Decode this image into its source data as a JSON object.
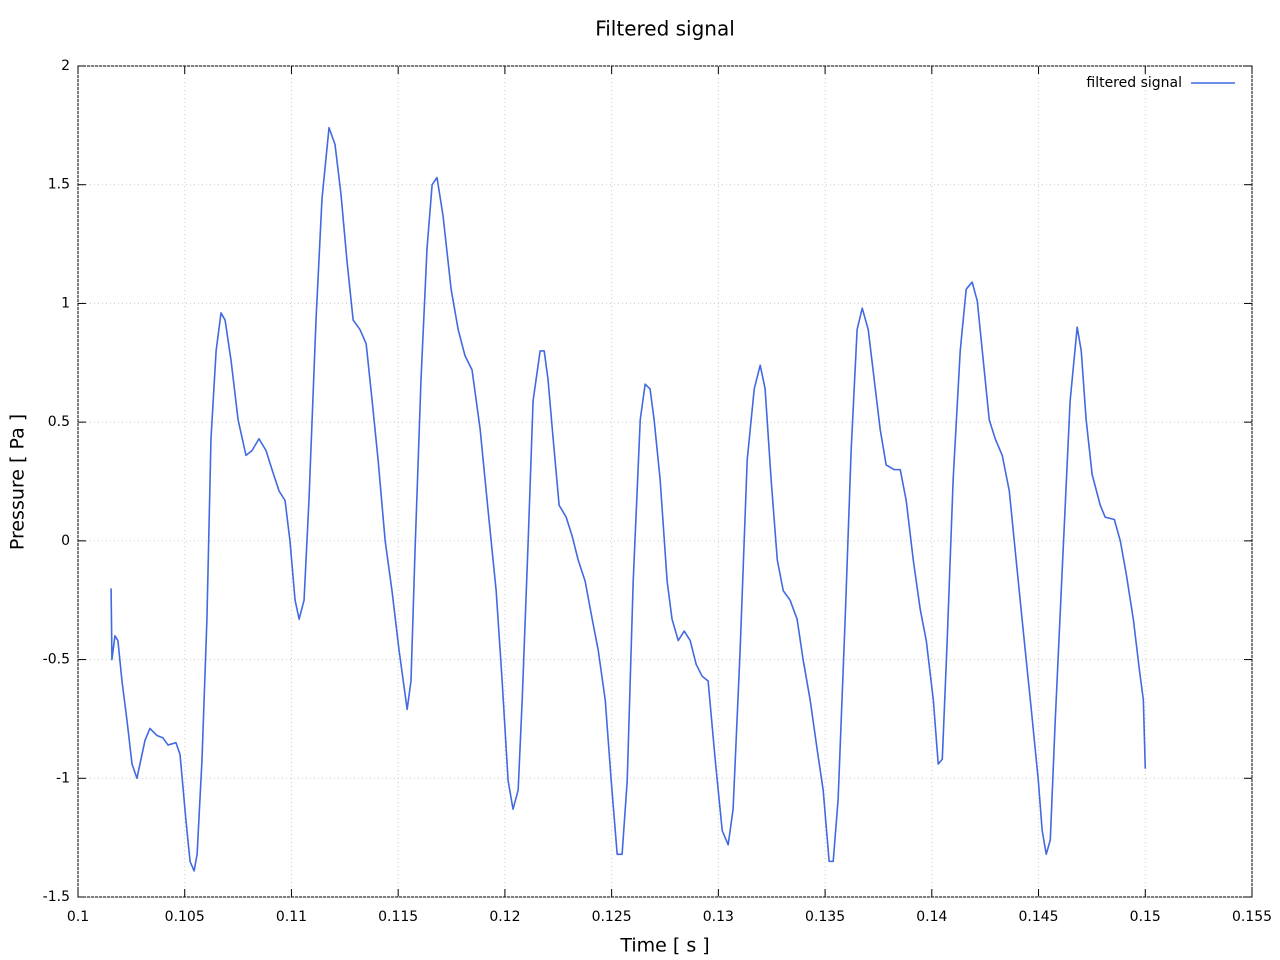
{
  "chart_data": {
    "type": "line",
    "title": "Filtered signal",
    "x_label": "Time [ s ]",
    "y_label": "Pressure [ Pa ]",
    "xlim": [
      0.1,
      0.155
    ],
    "xticks": [
      0.1,
      0.105,
      0.11,
      0.115,
      0.12,
      0.125,
      0.13,
      0.135,
      0.14,
      0.145,
      0.15,
      0.155
    ],
    "ylim": [
      -1.5,
      2
    ],
    "yticks": [
      -1.5,
      -1,
      -0.5,
      0,
      0.5,
      1,
      1.5,
      2
    ],
    "grid": true,
    "legend": "top-right",
    "series": [
      {
        "name": "filtered signal",
        "color": "#4169e1",
        "x": [
          0.10155,
          0.10159,
          0.10173,
          0.10187,
          0.10206,
          0.1023,
          0.10253,
          0.10276,
          0.10295,
          0.10314,
          0.10337,
          0.1037,
          0.10398,
          0.10422,
          0.10459,
          0.10478,
          0.10506,
          0.10525,
          0.10544,
          0.10558,
          0.10581,
          0.10604,
          0.10623,
          0.10647,
          0.1067,
          0.10689,
          0.10717,
          0.1075,
          0.10787,
          0.10815,
          0.10848,
          0.10881,
          0.10909,
          0.10942,
          0.1097,
          0.10993,
          0.11017,
          0.11036,
          0.11059,
          0.11082,
          0.11115,
          0.11143,
          0.11176,
          0.11204,
          0.11232,
          0.1126,
          0.11289,
          0.11321,
          0.1135,
          0.11378,
          0.11406,
          0.11439,
          0.11471,
          0.11504,
          0.11542,
          0.1156,
          0.11579,
          0.11607,
          0.11635,
          0.11659,
          0.11682,
          0.1171,
          0.11748,
          0.11781,
          0.11813,
          0.11846,
          0.11884,
          0.11921,
          0.11959,
          0.11987,
          0.12015,
          0.12038,
          0.12062,
          0.12081,
          0.12109,
          0.12132,
          0.12165,
          0.12184,
          0.12202,
          0.12226,
          0.12254,
          0.12287,
          0.12315,
          0.12343,
          0.12376,
          0.12409,
          0.12437,
          0.1247,
          0.12498,
          0.12526,
          0.12549,
          0.12573,
          0.12601,
          0.12634,
          0.12657,
          0.1268,
          0.12699,
          0.12727,
          0.1276,
          0.12783,
          0.12812,
          0.1284,
          0.12868,
          0.12896,
          0.12924,
          0.12952,
          0.12985,
          0.13018,
          0.13046,
          0.13069,
          0.13102,
          0.13135,
          0.13168,
          0.13196,
          0.13219,
          0.13247,
          0.13276,
          0.13304,
          0.13336,
          0.13369,
          0.13397,
          0.1343,
          0.13463,
          0.13491,
          0.13519,
          0.13538,
          0.13561,
          0.13594,
          0.13622,
          0.1365,
          0.13674,
          0.13702,
          0.1373,
          0.13758,
          0.13786,
          0.13824,
          0.13852,
          0.1388,
          0.13913,
          0.13946,
          0.13974,
          0.14007,
          0.1403,
          0.14049,
          0.14072,
          0.141,
          0.14133,
          0.14161,
          0.14189,
          0.14213,
          0.14241,
          0.14269,
          0.14297,
          0.1433,
          0.14363,
          0.14395,
          0.14433,
          0.14466,
          0.14499,
          0.14517,
          0.14536,
          0.14555,
          0.14578,
          0.14611,
          0.14648,
          0.14681,
          0.147,
          0.14723,
          0.14751,
          0.14789,
          0.14812,
          0.14855,
          0.14883,
          0.14911,
          0.14944,
          0.14972,
          0.14991,
          0.15
        ],
        "values": [
          -0.2,
          -0.5,
          -0.4,
          -0.42,
          -0.59,
          -0.76,
          -0.94,
          -1,
          -0.92,
          -0.84,
          -0.79,
          -0.82,
          -0.83,
          -0.86,
          -0.85,
          -0.9,
          -1.18,
          -1.35,
          -1.39,
          -1.32,
          -0.92,
          -0.33,
          0.43,
          0.8,
          0.96,
          0.93,
          0.76,
          0.51,
          0.36,
          0.38,
          0.43,
          0.38,
          0.3,
          0.21,
          0.17,
          0,
          -0.25,
          -0.33,
          -0.25,
          0.17,
          0.93,
          1.44,
          1.74,
          1.67,
          1.46,
          1.18,
          0.93,
          0.89,
          0.83,
          0.59,
          0.34,
          0,
          -0.21,
          -0.46,
          -0.71,
          -0.59,
          -0.04,
          0.68,
          1.23,
          1.5,
          1.53,
          1.37,
          1.06,
          0.89,
          0.78,
          0.72,
          0.47,
          0.13,
          -0.21,
          -0.59,
          -1.01,
          -1.13,
          -1.05,
          -0.67,
          0,
          0.59,
          0.8,
          0.8,
          0.68,
          0.43,
          0.15,
          0.1,
          0.02,
          -0.08,
          -0.17,
          -0.33,
          -0.46,
          -0.67,
          -1.01,
          -1.32,
          -1.32,
          -1.01,
          -0.17,
          0.51,
          0.66,
          0.64,
          0.51,
          0.26,
          -0.17,
          -0.33,
          -0.42,
          -0.38,
          -0.42,
          -0.52,
          -0.57,
          -0.59,
          -0.92,
          -1.22,
          -1.28,
          -1.13,
          -0.46,
          0.34,
          0.64,
          0.74,
          0.64,
          0.26,
          -0.08,
          -0.21,
          -0.25,
          -0.33,
          -0.5,
          -0.67,
          -0.88,
          -1.05,
          -1.35,
          -1.35,
          -1.09,
          -0.33,
          0.38,
          0.89,
          0.98,
          0.89,
          0.68,
          0.47,
          0.32,
          0.3,
          0.3,
          0.17,
          -0.08,
          -0.29,
          -0.42,
          -0.67,
          -0.94,
          -0.92,
          -0.42,
          0.26,
          0.8,
          1.06,
          1.09,
          1.01,
          0.76,
          0.51,
          0.43,
          0.36,
          0.21,
          -0.08,
          -0.42,
          -0.71,
          -1.01,
          -1.22,
          -1.32,
          -1.26,
          -0.76,
          -0.12,
          0.59,
          0.9,
          0.8,
          0.51,
          0.28,
          0.15,
          0.1,
          0.09,
          0,
          -0.14,
          -0.33,
          -0.54,
          -0.67,
          -0.96
        ]
      }
    ]
  }
}
